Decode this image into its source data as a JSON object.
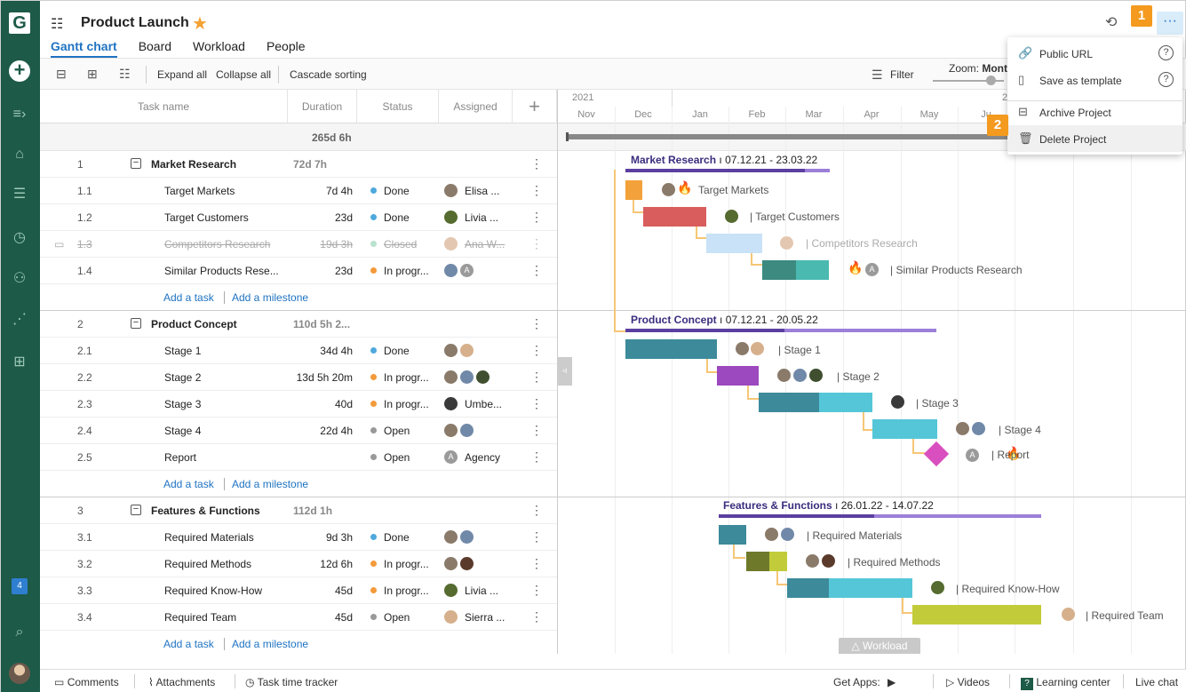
{
  "header": {
    "title": "Product Launch",
    "tabs": [
      "Gantt chart",
      "Board",
      "Workload",
      "People"
    ],
    "more_label": "···"
  },
  "steps": {
    "one": "1",
    "two": "2"
  },
  "toolbar": {
    "expand_all": "Expand all",
    "collapse_all": "Collapse all",
    "cascade_sorting": "Cascade sorting",
    "filter": "Filter",
    "zoom_label": "Zoom:",
    "zoom_value": "Mont"
  },
  "columns": {
    "task_name": "Task name",
    "duration": "Duration",
    "status": "Status",
    "assigned": "Assigned",
    "add": "+"
  },
  "summary_duration": "265d 6h",
  "add_task": "Add a task",
  "add_milestone": "Add a milestone",
  "groups": [
    {
      "num": "1",
      "name": "Market Research",
      "duration": "72d 7h",
      "tasks": [
        {
          "num": "1.1",
          "name": "Target Markets",
          "duration": "7d 4h",
          "status": "Done",
          "assigned": "Elisa ..."
        },
        {
          "num": "1.2",
          "name": "Target Customers",
          "duration": "23d",
          "status": "Done",
          "assigned": "Livia ..."
        },
        {
          "num": "1.3",
          "name": "Competitors Research",
          "duration": "19d 3h",
          "status": "Closed",
          "assigned": "Ana W..."
        },
        {
          "num": "1.4",
          "name": "Similar Products Rese...",
          "duration": "23d",
          "status": "In progr...",
          "assigned": ""
        }
      ]
    },
    {
      "num": "2",
      "name": "Product Concept",
      "duration": "110d 5h 2...",
      "tasks": [
        {
          "num": "2.1",
          "name": "Stage 1",
          "duration": "34d 4h",
          "status": "Done",
          "assigned": ""
        },
        {
          "num": "2.2",
          "name": "Stage 2",
          "duration": "13d 5h 20m",
          "status": "In progr...",
          "assigned": ""
        },
        {
          "num": "2.3",
          "name": "Stage 3",
          "duration": "40d",
          "status": "In progr...",
          "assigned": "Umbe..."
        },
        {
          "num": "2.4",
          "name": "Stage 4",
          "duration": "22d 4h",
          "status": "Open",
          "assigned": ""
        },
        {
          "num": "2.5",
          "name": "Report",
          "duration": "",
          "status": "Open",
          "assigned": "Agency"
        }
      ]
    },
    {
      "num": "3",
      "name": "Features & Functions",
      "duration": "112d 1h",
      "tasks": [
        {
          "num": "3.1",
          "name": "Required Materials",
          "duration": "9d 3h",
          "status": "Done",
          "assigned": ""
        },
        {
          "num": "3.2",
          "name": "Required Methods",
          "duration": "12d 6h",
          "status": "In progr...",
          "assigned": ""
        },
        {
          "num": "3.3",
          "name": "Required Know-How",
          "duration": "45d",
          "status": "In progr...",
          "assigned": "Livia ..."
        },
        {
          "num": "3.4",
          "name": "Required Team",
          "duration": "45d",
          "status": "Open",
          "assigned": "Sierra ..."
        }
      ]
    }
  ],
  "timeline": {
    "year1": "2021",
    "year2": "2",
    "months": [
      "Nov",
      "Dec",
      "Jan",
      "Feb",
      "Mar",
      "Apr",
      "May",
      "Ju"
    ]
  },
  "gantt_labels": {
    "g1_title": "Market Research",
    "g1_dates": "07.12.21 - 23.03.22",
    "g2_title": "Product Concept",
    "g2_dates": "07.12.21 - 20.05.22",
    "g3_title": "Features & Functions",
    "g3_dates": "26.01.22 - 14.07.22",
    "t11": "Target Markets",
    "t12": "Target Customers",
    "t13": "Competitors Research",
    "t14": "Similar Products Research",
    "t21": "Stage 1",
    "t22": "Stage 2",
    "t23": "Stage 3",
    "t24": "Stage 4",
    "t25": "Report",
    "t31": "Required Materials",
    "t32": "Required Methods",
    "t33": "Required Know-How",
    "t34": "Required Team"
  },
  "menu": {
    "public_url": "Public URL",
    "save_template": "Save as template",
    "archive": "Archive Project",
    "delete": "Delete Project",
    "help": "?"
  },
  "workload_tab": "Workload",
  "rail_badge": "4",
  "bottom": {
    "comments": "Comments",
    "attachments": "Attachments",
    "time_tracker": "Task time tracker",
    "get_apps": "Get Apps:",
    "videos": "Videos",
    "learning": "Learning center",
    "live_chat": "Live chat"
  },
  "colors": {
    "rail": "#1d5a48",
    "accent": "#1f73c2",
    "step": "#f39a1f",
    "done": "#4fa9dc",
    "in_progress": "#f39a3a",
    "open": "#999999",
    "closed": "#b9e2cf"
  }
}
